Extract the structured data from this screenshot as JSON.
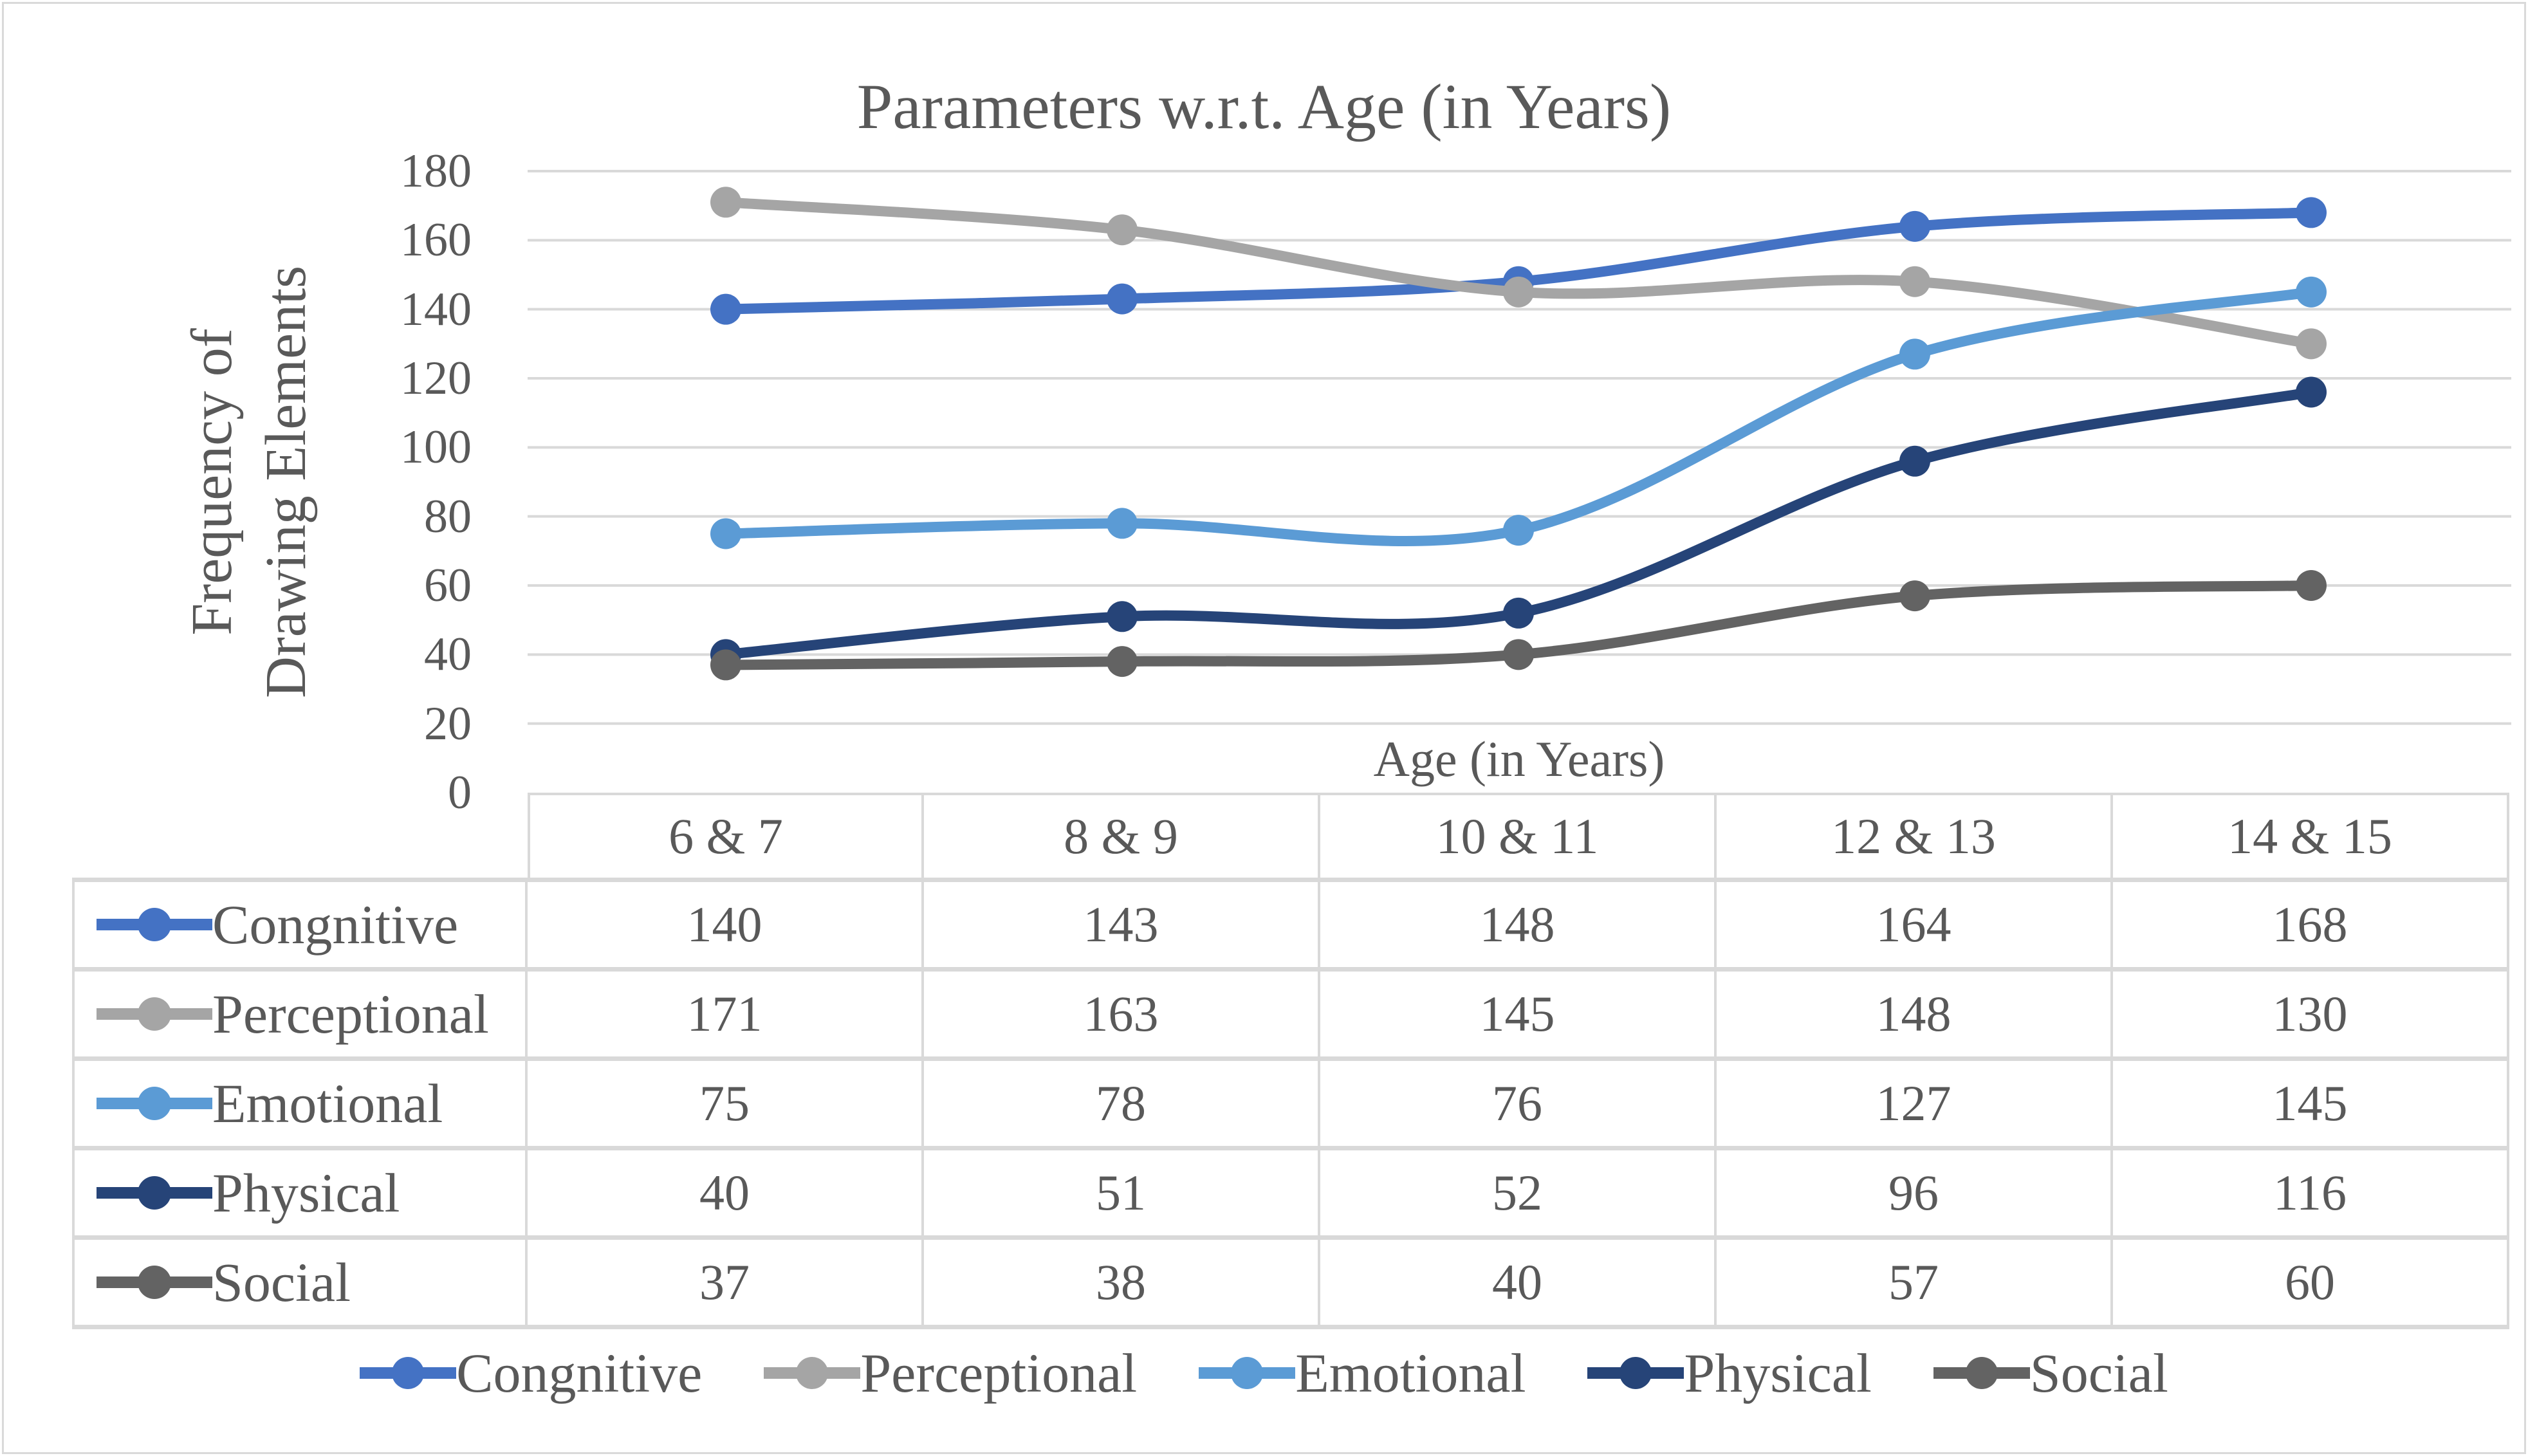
{
  "chart": {
    "title": "Parameters w.r.t. Age (in Years)",
    "y_axis": {
      "title_lines": [
        "Frequency of",
        "Drawing Elements"
      ],
      "ticks": [
        "0",
        "20",
        "40",
        "60",
        "80",
        "100",
        "120",
        "140",
        "160",
        "180"
      ]
    },
    "x_axis": {
      "title": "Age (in Years)"
    },
    "colors": {
      "text": "#595959",
      "gridline": "#D9D9D9",
      "table_border": "#D9D9D9"
    }
  },
  "chart_data": {
    "type": "line",
    "title": "Parameters w.r.t. Age (in Years)",
    "xlabel": "Age (in Years)",
    "ylabel": "Frequency of Drawing Elements",
    "ylim": [
      0,
      180
    ],
    "ytick_step": 20,
    "grid": true,
    "smooth_lines": true,
    "markers": "circle",
    "legend_position": "bottom",
    "data_table_shown": true,
    "categories": [
      "6 & 7",
      "8 & 9",
      "10 & 11",
      "12 & 13",
      "14 & 15"
    ],
    "series": [
      {
        "name": "Congnitive",
        "color": "#4472C4",
        "values": [
          140,
          143,
          148,
          164,
          168
        ]
      },
      {
        "name": "Perceptional",
        "color": "#A5A5A5",
        "values": [
          171,
          163,
          145,
          148,
          130
        ]
      },
      {
        "name": "Emotional",
        "color": "#5B9BD5",
        "values": [
          75,
          78,
          76,
          127,
          145
        ]
      },
      {
        "name": "Physical",
        "color": "#264478",
        "values": [
          40,
          51,
          52,
          96,
          116
        ]
      },
      {
        "name": "Social",
        "color": "#636363",
        "values": [
          37,
          38,
          40,
          57,
          60
        ]
      }
    ]
  }
}
